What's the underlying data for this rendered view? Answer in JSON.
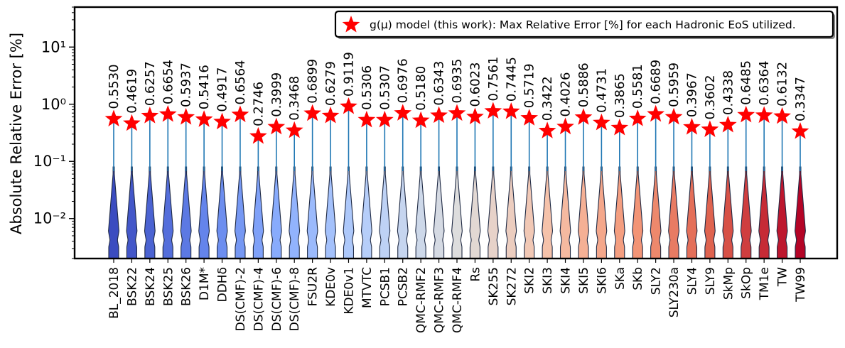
{
  "chart_data": {
    "type": "violin",
    "title": "",
    "xlabel": "",
    "ylabel": "Absolute Relative Error [%]",
    "yscale": "log",
    "ylim": [
      0.002,
      50
    ],
    "y_ticks": [
      {
        "value": 10,
        "label": "10¹"
      },
      {
        "value": 1,
        "label": "10⁰"
      },
      {
        "value": 0.1,
        "label": "10⁻¹"
      },
      {
        "value": 0.01,
        "label": "10⁻²"
      }
    ],
    "legend": {
      "position": "top-right",
      "label": "g(μ) model (this work): Max Relative Error [%] for each Hadronic EoS utilized.",
      "marker": "star",
      "marker_color": "#ff0000"
    },
    "categories": [
      "BL_2018",
      "BSK22",
      "BSK24",
      "BSK25",
      "BSK26",
      "D1M*",
      "DDHδ",
      "DS(CMF)-2",
      "DS(CMF)-4",
      "DS(CMF)-6",
      "DS(CMF)-8",
      "FSU2R",
      "KDE0v",
      "KDE0v1",
      "MTVTC",
      "PCSB1",
      "PCSB2",
      "QMC-RMF2",
      "QMC-RMF3",
      "QMC-RMF4",
      "Rs",
      "SK255",
      "SK272",
      "SKI2",
      "SKI3",
      "SKI4",
      "SKI5",
      "SKI6",
      "SKa",
      "SKb",
      "SLY2",
      "SLY230a",
      "SLY4",
      "SLY9",
      "SkMp",
      "SkOp",
      "TM1e",
      "TW",
      "TW99"
    ],
    "series": [
      {
        "name": "g(μ) model (this work): Max Relative Error [%] for each Hadronic EoS utilized.",
        "type": "star",
        "values": [
          0.553,
          0.4619,
          0.6257,
          0.6654,
          0.5937,
          0.5416,
          0.4917,
          0.6564,
          0.2746,
          0.3999,
          0.3468,
          0.6899,
          0.6279,
          0.9119,
          0.5306,
          0.5307,
          0.6976,
          0.518,
          0.6343,
          0.6935,
          0.6023,
          0.7561,
          0.7445,
          0.5719,
          0.3422,
          0.4026,
          0.5886,
          0.4731,
          0.3865,
          0.5581,
          0.6689,
          0.5959,
          0.3967,
          0.3602,
          0.4338,
          0.6485,
          0.6364,
          0.6132,
          0.3347
        ],
        "value_labels": [
          "0.5530",
          "0.4619",
          "0.6257",
          "0.6654",
          "0.5937",
          "0.5416",
          "0.4917",
          "0.6564",
          "0.2746",
          "0.3999",
          "0.3468",
          "0.6899",
          "0.6279",
          "0.9119",
          "0.5306",
          "0.5307",
          "0.6976",
          "0.5180",
          "0.6343",
          "0.6935",
          "0.6023",
          "0.7561",
          "0.7445",
          "0.5719",
          "0.3422",
          "0.4026",
          "0.5886",
          "0.4731",
          "0.3865",
          "0.5581",
          "0.6689",
          "0.5959",
          "0.3967",
          "0.3602",
          "0.4338",
          "0.6485",
          "0.6364",
          "0.6132",
          "0.3347"
        ]
      }
    ],
    "violin_color_scheme": "coolwarm",
    "violin_edge_color": "#1f2a44",
    "violin_line_color": "#1f77b4"
  }
}
